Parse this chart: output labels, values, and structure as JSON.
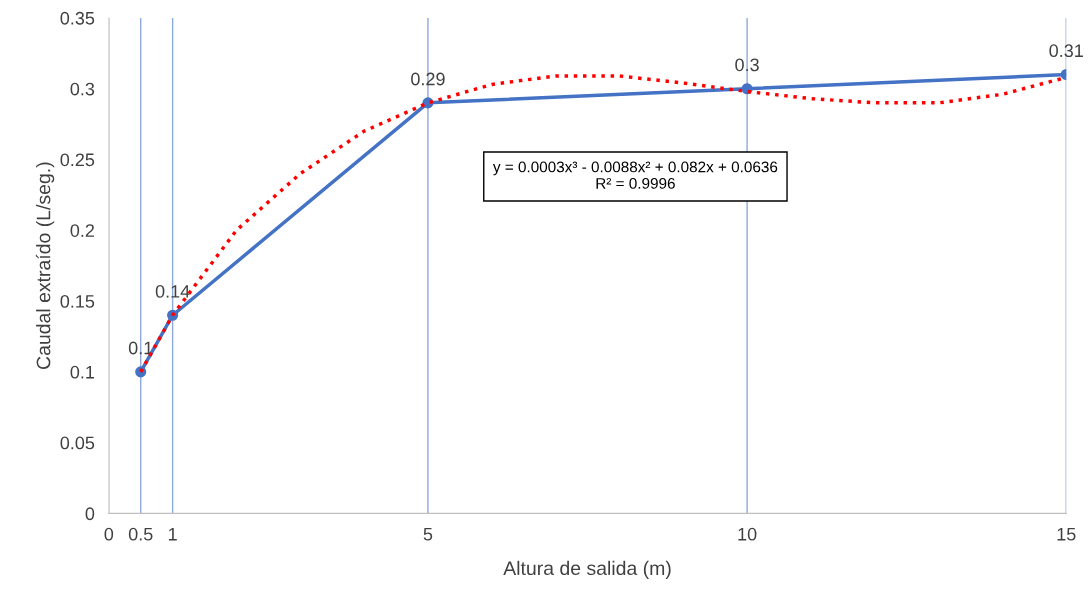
{
  "chart_data": {
    "type": "line",
    "xlabel": "Altura de salida (m)",
    "ylabel": "Caudal extraído (L/seg.)",
    "x": [
      0.5,
      1,
      5,
      10,
      15
    ],
    "series": [
      {
        "color": "#4472c4",
        "values": [
          0.1,
          0.14,
          0.29,
          0.3,
          0.31
        ],
        "marker": "circle",
        "line_style": "solid",
        "data_labels": true
      },
      {
        "type": "line",
        "color": "#ff0000",
        "line_style": "dotted",
        "marker": "none",
        "x": [
          0.5,
          1,
          2,
          3,
          4,
          5,
          6,
          7,
          8,
          9,
          10,
          11,
          12,
          13,
          14,
          15
        ],
        "values": [
          0.1,
          0.14,
          0.2,
          0.24,
          0.27,
          0.29,
          0.303,
          0.309,
          0.309,
          0.304,
          0.298,
          0.293,
          0.29,
          0.29,
          0.296,
          0.308
        ]
      }
    ],
    "xlim": [
      0,
      15
    ],
    "xticks": [
      0,
      0.5,
      1,
      5,
      10,
      15
    ],
    "ylim": [
      0,
      0.35
    ],
    "yticks": [
      0,
      0.05,
      0.1,
      0.15,
      0.2,
      0.25,
      0.3,
      0.35
    ],
    "grid": "x",
    "legend": false,
    "annotations": [
      "y = 0.0003x³ - 0.0088x² + 0.082x + 0.0636\nR² = 0.9996"
    ]
  }
}
